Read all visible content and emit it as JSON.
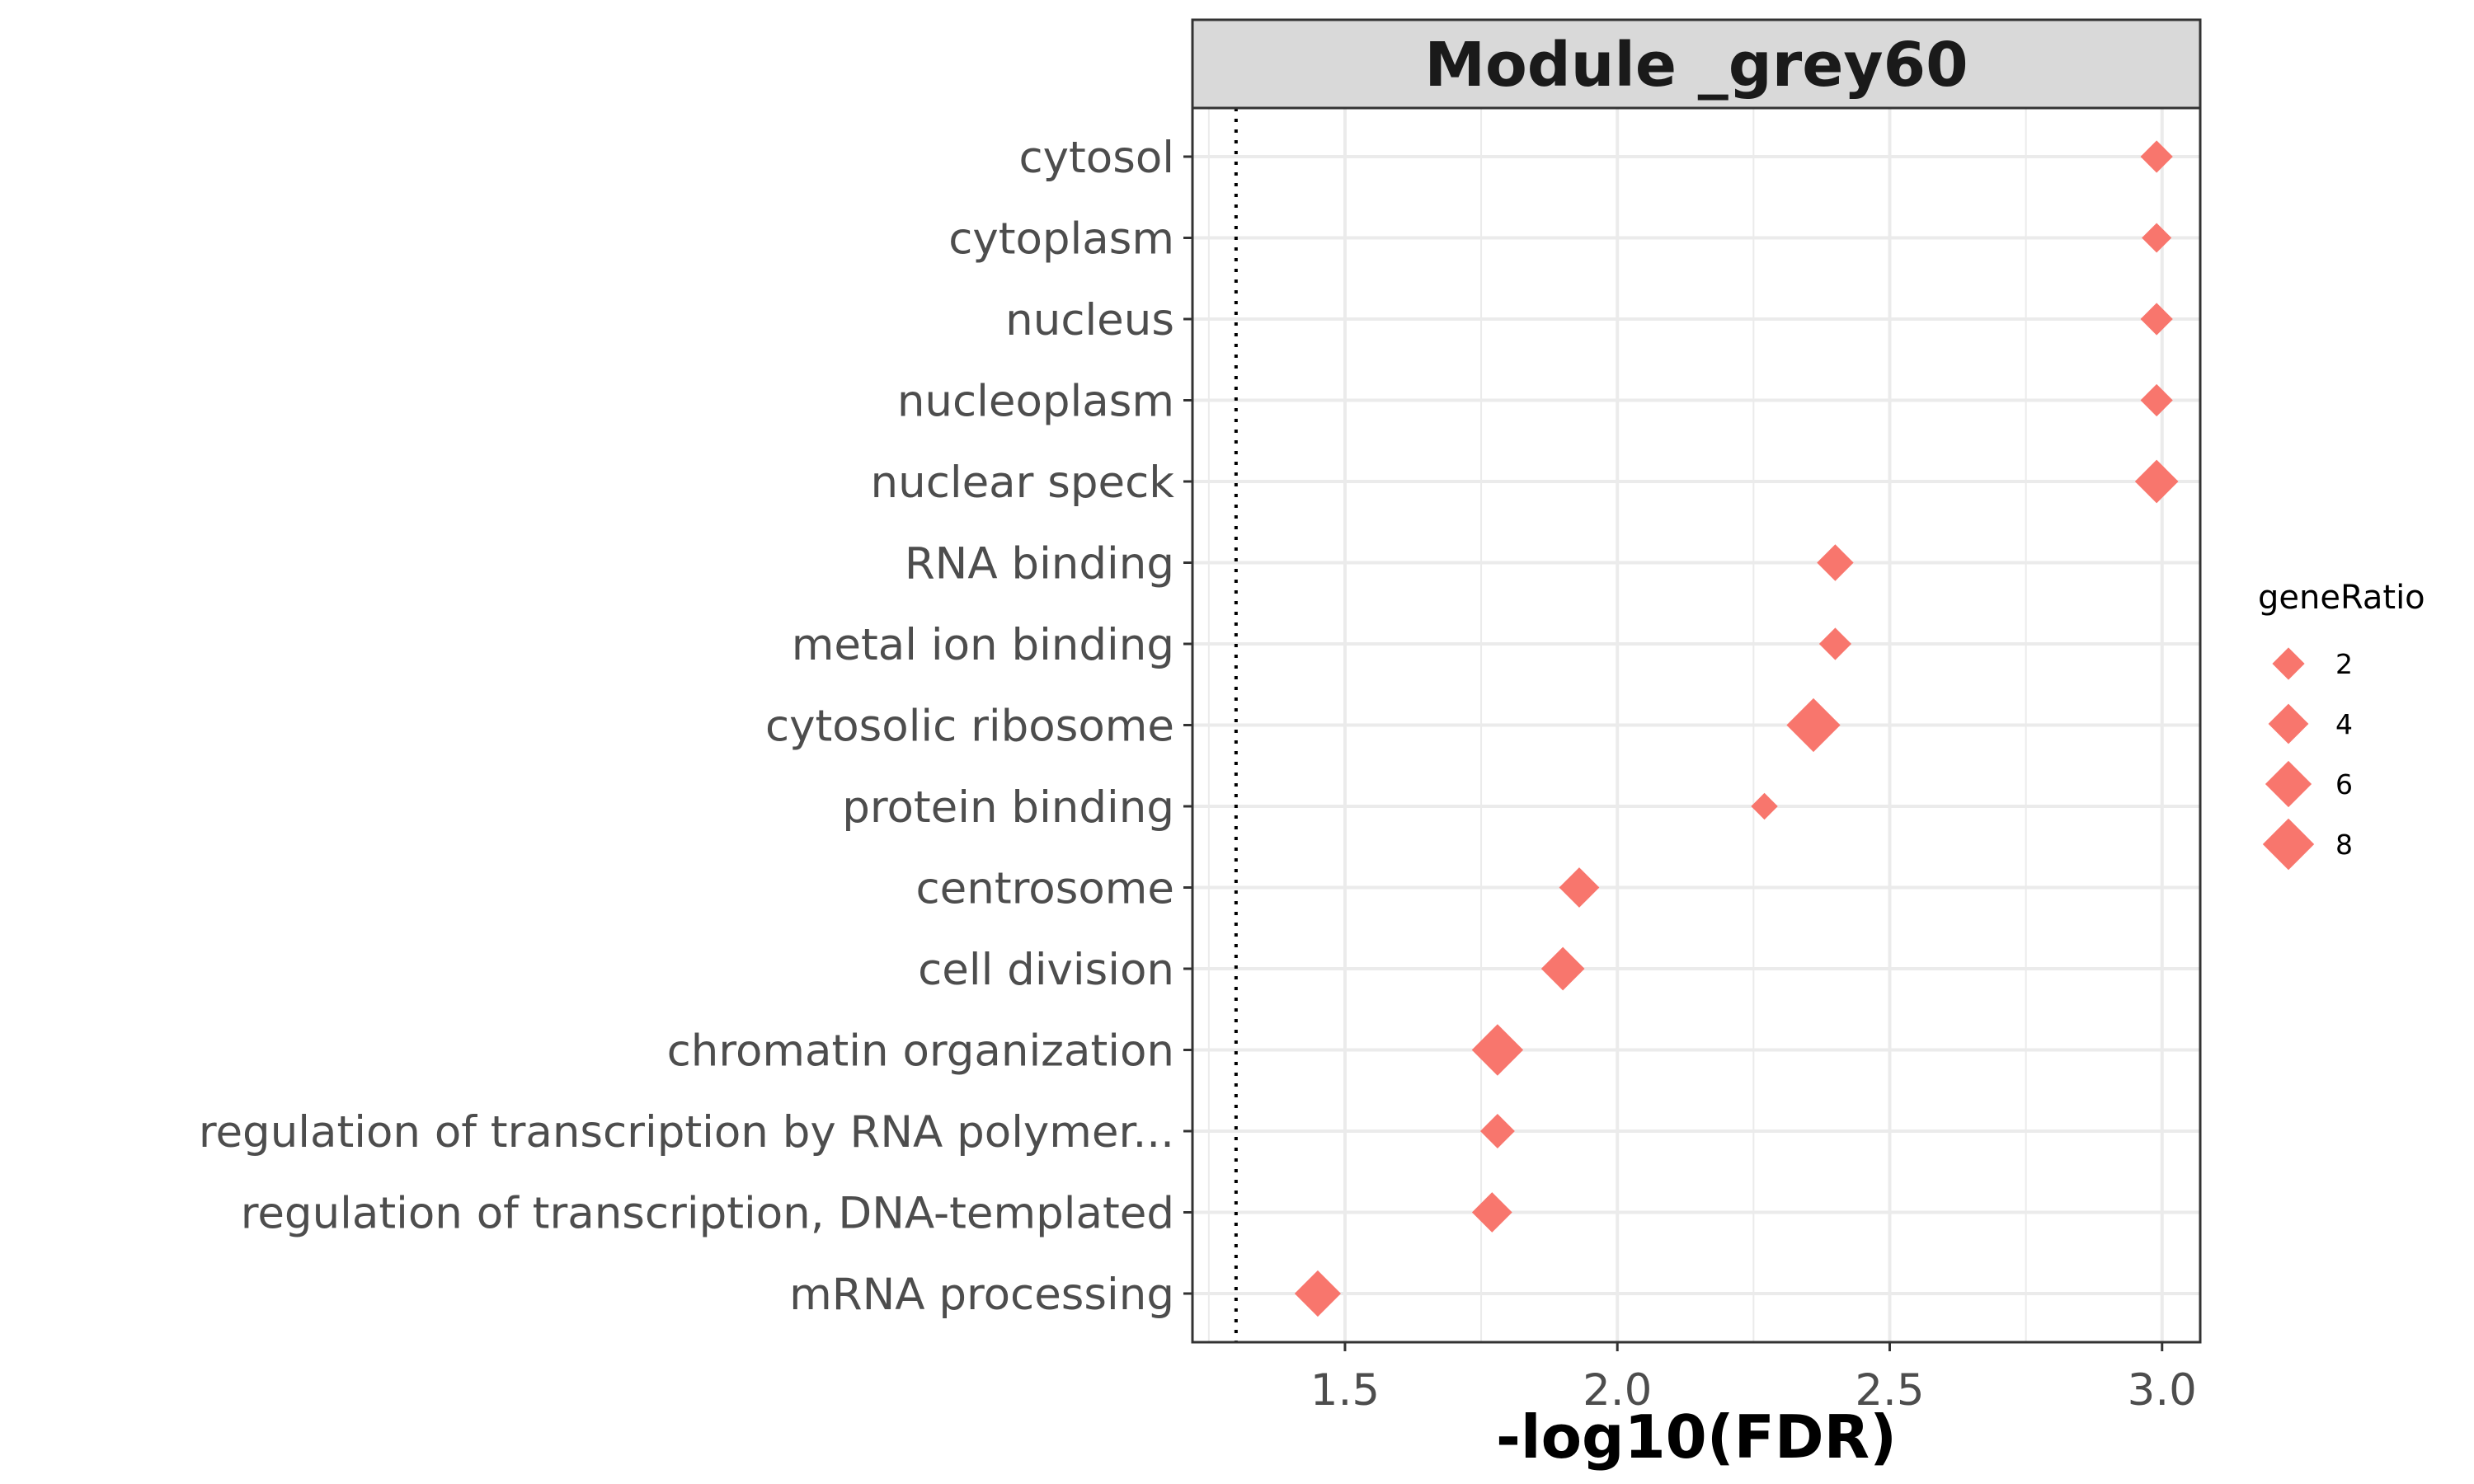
{
  "chart_data": {
    "type": "scatter",
    "title": "Module _grey60",
    "xlabel": "-log10(FDR)",
    "ylabel": "",
    "xlim": [
      1.22,
      3.07
    ],
    "x_ticks": [
      1.5,
      2.0,
      2.5,
      3.0
    ],
    "x_tick_labels": [
      "1.5",
      "2.0",
      "2.5",
      "3.0"
    ],
    "grid": true,
    "threshold_line": 1.3,
    "marker": "diamond",
    "color": "#F8766D",
    "categories": [
      "cytosol",
      "cytoplasm",
      "nucleus",
      "nucleoplasm",
      "nuclear speck",
      "RNA binding",
      "metal ion binding",
      "cytosolic ribosome",
      "protein binding",
      "centrosome",
      "cell division",
      "chromatin organization",
      "regulation of transcription by RNA polymer...",
      "regulation of transcription, DNA-templated",
      "mRNA processing"
    ],
    "points": [
      {
        "y": "cytosol",
        "x": 2.99,
        "geneRatio": 2
      },
      {
        "y": "cytoplasm",
        "x": 2.99,
        "geneRatio": 1.5
      },
      {
        "y": "nucleus",
        "x": 2.99,
        "geneRatio": 2
      },
      {
        "y": "nucleoplasm",
        "x": 2.99,
        "geneRatio": 2
      },
      {
        "y": "nuclear speck",
        "x": 2.99,
        "geneRatio": 5
      },
      {
        "y": "RNA binding",
        "x": 2.4,
        "geneRatio": 3
      },
      {
        "y": "metal ion binding",
        "x": 2.4,
        "geneRatio": 2
      },
      {
        "y": "cytosolic ribosome",
        "x": 2.36,
        "geneRatio": 9
      },
      {
        "y": "protein binding",
        "x": 2.27,
        "geneRatio": 1
      },
      {
        "y": "centrosome",
        "x": 1.93,
        "geneRatio": 4
      },
      {
        "y": "cell division",
        "x": 1.9,
        "geneRatio": 5
      },
      {
        "y": "chromatin organization",
        "x": 1.78,
        "geneRatio": 8
      },
      {
        "y": "regulation of transcription by RNA polymer...",
        "x": 1.78,
        "geneRatio": 2.5
      },
      {
        "y": "regulation of transcription, DNA-templated",
        "x": 1.77,
        "geneRatio": 4
      },
      {
        "y": "mRNA processing",
        "x": 1.45,
        "geneRatio": 6
      }
    ],
    "legend": {
      "title": "geneRatio",
      "position": "right",
      "entries": [
        {
          "label": "2",
          "value": 2
        },
        {
          "label": "4",
          "value": 4
        },
        {
          "label": "6",
          "value": 6
        },
        {
          "label": "8",
          "value": 8
        }
      ]
    }
  }
}
